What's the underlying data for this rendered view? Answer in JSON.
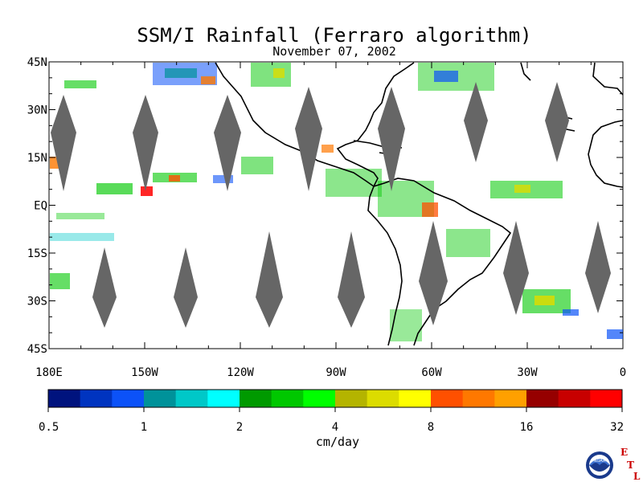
{
  "header": {
    "title": "SSM/I Rainfall (Ferraro algorithm)",
    "date": "November 07, 2002"
  },
  "map": {
    "lat_labels": [
      "45N",
      "30N",
      "15N",
      "EQ",
      "15S",
      "30S",
      "45S"
    ],
    "lat_values": [
      45,
      30,
      15,
      0,
      -15,
      -30,
      -45
    ],
    "lon_labels": [
      "180E",
      "150W",
      "120W",
      "90W",
      "60W",
      "30W",
      "0"
    ],
    "lon_values": [
      -180,
      -150,
      -120,
      -90,
      -60,
      -30,
      0
    ],
    "extent": {
      "lon": [
        -180,
        0
      ],
      "lat": [
        -45,
        45
      ]
    },
    "swath_gap_color": "#666666",
    "coastline_color": "#000000"
  },
  "colorbar": {
    "colors": [
      "#00137e",
      "#0034c0",
      "#0c52f8",
      "#00929a",
      "#00c8c8",
      "#00ffff",
      "#009a00",
      "#00c800",
      "#00ff00",
      "#b4b400",
      "#dcdc00",
      "#ffff00",
      "#ff5000",
      "#ff7800",
      "#ffa000",
      "#960000",
      "#c80000",
      "#ff0000"
    ],
    "tick_labels": [
      "0.5",
      "1",
      "2",
      "4",
      "8",
      "16",
      "32"
    ],
    "unit": "cm/day"
  },
  "logo": {
    "seal_text": "NOAA",
    "lab_letters": [
      "E",
      "T",
      "L"
    ],
    "letter_color": "#cc0000"
  }
}
